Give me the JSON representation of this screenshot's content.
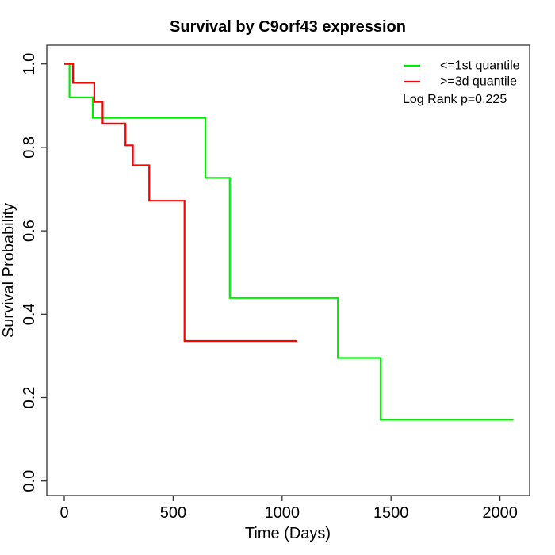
{
  "chart_data": {
    "type": "line",
    "subtype": "kaplan-meier-step",
    "title": "Survival by C9orf43 expression",
    "xlabel": "Time (Days)",
    "ylabel": "Survival Probability",
    "x_ticks": [
      0,
      500,
      1000,
      1500,
      2000
    ],
    "y_ticks": [
      0.0,
      0.2,
      0.4,
      0.6,
      0.8,
      1.0
    ],
    "xlim": [
      0,
      2062
    ],
    "ylim": [
      0.0,
      1.0
    ],
    "grid": false,
    "legend_position": "top-right",
    "annotation": "Log Rank p=0.225",
    "axis_color": "#333333",
    "series": [
      {
        "name": "<=1st quantile",
        "color": "#00ee00",
        "start": [
          0,
          1.0
        ],
        "steps": [
          [
            24,
            0.92
          ],
          [
            131,
            0.871
          ],
          [
            648,
            0.727
          ],
          [
            760,
            0.439
          ],
          [
            1256,
            0.295
          ],
          [
            1452,
            0.147
          ]
        ],
        "end_time": 2062
      },
      {
        "name": ">=3d quantile",
        "color": "#ff0000",
        "start": [
          0,
          1.0
        ],
        "steps": [
          [
            40,
            0.955
          ],
          [
            138,
            0.909
          ],
          [
            176,
            0.857
          ],
          [
            281,
            0.805
          ],
          [
            315,
            0.757
          ],
          [
            390,
            0.672
          ],
          [
            552,
            0.336
          ]
        ],
        "end_time": 1070
      }
    ]
  }
}
